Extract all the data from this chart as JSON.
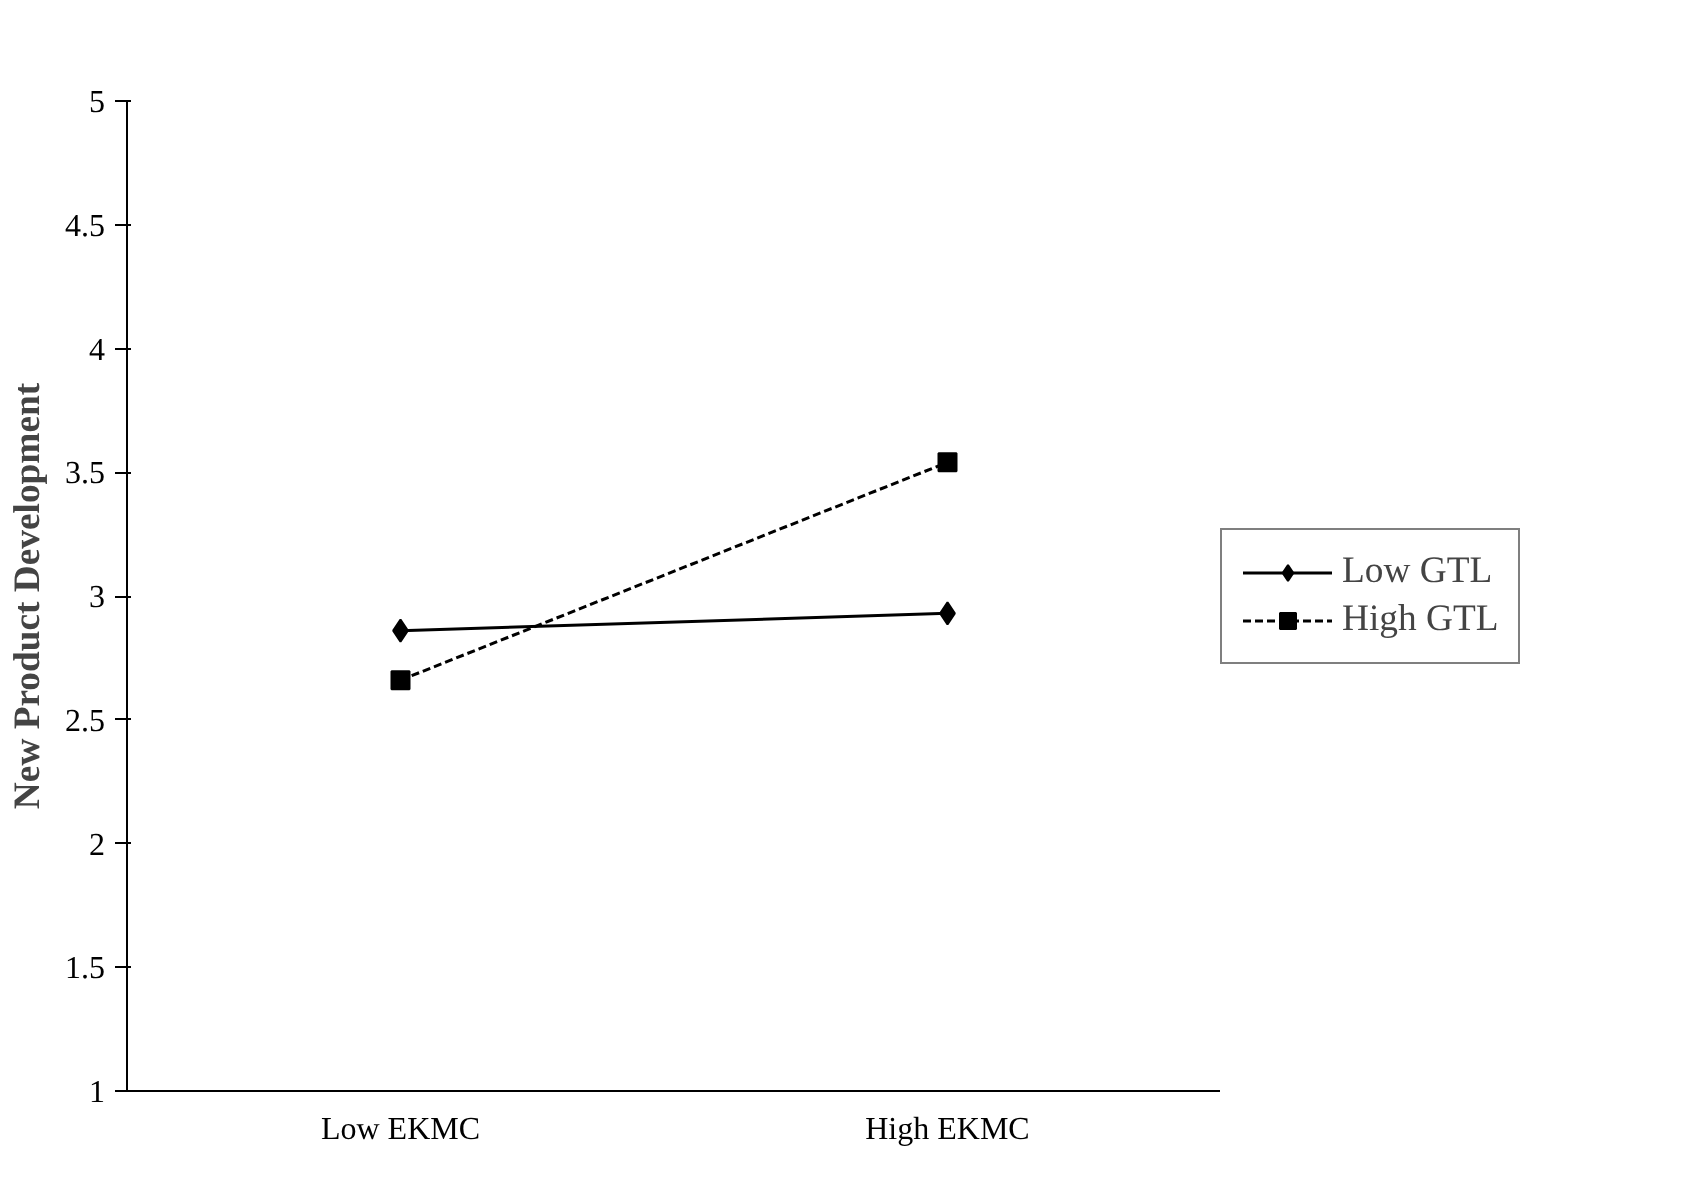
{
  "chart_data": {
    "type": "line",
    "ylabel": "New Product Development",
    "categories": [
      "Low EKMC",
      "High EKMC"
    ],
    "series": [
      {
        "name": "Low GTL",
        "color": "#000000",
        "values": [
          2.86,
          2.93
        ],
        "marker": "diamond",
        "line_style": "solid"
      },
      {
        "name": "High GTL",
        "color": "#000000",
        "values": [
          2.66,
          3.54
        ],
        "marker": "square",
        "line_style": "dashed"
      }
    ],
    "ylim": [
      1,
      5
    ],
    "yticks": [
      1,
      1.5,
      2,
      2.5,
      3,
      3.5,
      4,
      4.5,
      5
    ],
    "grid": false,
    "legend": "right"
  }
}
